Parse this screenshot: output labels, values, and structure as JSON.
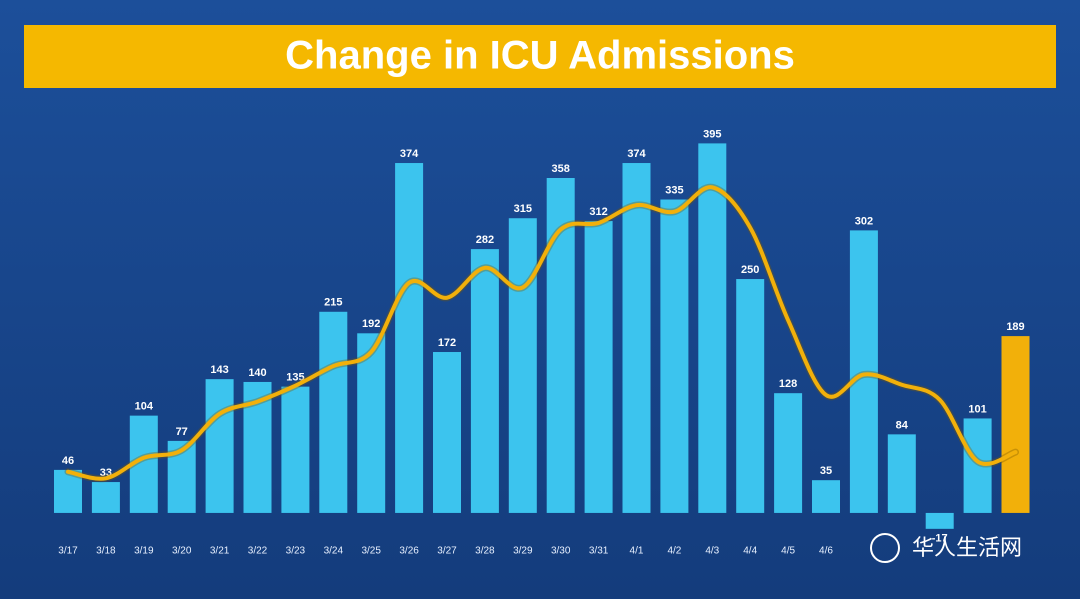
{
  "chart_data": {
    "type": "bar",
    "title": "Change in ICU Admissions",
    "categories": [
      "3/17",
      "3/18",
      "3/19",
      "3/20",
      "3/21",
      "3/22",
      "3/23",
      "3/24",
      "3/25",
      "3/26",
      "3/27",
      "3/28",
      "3/29",
      "3/30",
      "3/31",
      "4/1",
      "4/2",
      "4/3",
      "4/4",
      "4/5",
      "4/6",
      null,
      null,
      null,
      null,
      null
    ],
    "values": [
      46,
      33,
      104,
      77,
      143,
      140,
      135,
      215,
      192,
      374,
      172,
      282,
      315,
      358,
      312,
      374,
      335,
      395,
      250,
      128,
      35,
      302,
      84,
      -17,
      101,
      189
    ],
    "colors": [
      "#3cc4ee",
      "#3cc4ee",
      "#3cc4ee",
      "#3cc4ee",
      "#3cc4ee",
      "#3cc4ee",
      "#3cc4ee",
      "#3cc4ee",
      "#3cc4ee",
      "#3cc4ee",
      "#3cc4ee",
      "#3cc4ee",
      "#3cc4ee",
      "#3cc4ee",
      "#3cc4ee",
      "#3cc4ee",
      "#3cc4ee",
      "#3cc4ee",
      "#3cc4ee",
      "#3cc4ee",
      "#3cc4ee",
      "#3cc4ee",
      "#3cc4ee",
      "#3cc4ee",
      "#3cc4ee",
      "#f2b00a"
    ],
    "trend": {
      "color": "#f2b00a",
      "values": [
        44,
        37,
        59,
        67,
        106,
        119,
        136,
        157,
        172,
        246,
        230,
        262,
        241,
        303,
        310,
        329,
        322,
        348,
        305,
        206,
        126,
        148,
        137,
        121,
        55,
        65
      ]
    },
    "ylim": [
      -30,
      420
    ],
    "watermark": "华人生活网"
  }
}
